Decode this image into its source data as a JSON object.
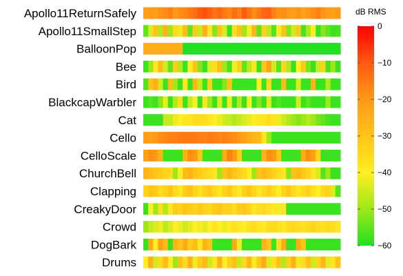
{
  "chart_data": {
    "type": "heatmap",
    "title": "",
    "colorbar": {
      "title": "dB RMS",
      "min": -60,
      "max": 0,
      "ticks": [
        0,
        -10,
        -20,
        -30,
        -40,
        -50,
        -60
      ],
      "tick_labels": [
        "0",
        "−10",
        "−20",
        "−30",
        "−40",
        "−50",
        "−60"
      ],
      "colors": [
        "#22e022",
        "#9ee81a",
        "#ffee22",
        "#ffc418",
        "#ff9a18",
        "#ff5a10",
        "#ff0000"
      ]
    },
    "rows": [
      {
        "label": "Apollo11ReturnSafely",
        "values": [
          -22,
          -20,
          -21,
          -19,
          -18,
          -16,
          -20,
          -18,
          -17,
          -15,
          -13,
          -10,
          -9,
          -11,
          -14,
          -12,
          -15,
          -17,
          -13,
          -16,
          -10,
          -14,
          -18,
          -15,
          -12,
          -11,
          -16,
          -19,
          -18,
          -20,
          -21,
          -19,
          -22,
          -20,
          -18,
          -16,
          -19,
          -21,
          -22,
          -20
        ]
      },
      {
        "label": "Apollo11SmallStep",
        "values": [
          -55,
          -44,
          -30,
          -48,
          -26,
          -50,
          -35,
          -42,
          -28,
          -55,
          -32,
          -46,
          -25,
          -38,
          -52,
          -30,
          -44,
          -58,
          -36,
          -29,
          -50,
          -41,
          -27,
          -55,
          -33,
          -47,
          -56,
          -39,
          -30,
          -52,
          -45,
          -31,
          -57,
          -49,
          -40,
          -58,
          -52,
          -55,
          -58,
          -57
        ]
      },
      {
        "label": "BalloonPop",
        "values": [
          -25,
          -25,
          -25,
          -25,
          -25,
          -25,
          -25,
          -25,
          -60,
          -60,
          -60,
          -60,
          -60,
          -60,
          -60,
          -60,
          -60,
          -60,
          -60,
          -60,
          -60,
          -60,
          -60,
          -60,
          -60,
          -60,
          -60,
          -60,
          -60,
          -60,
          -60,
          -60,
          -60,
          -60,
          -60,
          -60,
          -60,
          -60,
          -60,
          -60
        ]
      },
      {
        "label": "Bee",
        "values": [
          -58,
          -50,
          -38,
          -28,
          -45,
          -55,
          -32,
          -48,
          -58,
          -40,
          -30,
          -52,
          -58,
          -44,
          -36,
          -29,
          -50,
          -57,
          -41,
          -33,
          -55,
          -47,
          -38,
          -58,
          -30,
          -22,
          -45,
          -56,
          -35,
          -48,
          -58,
          -40,
          -31,
          -53,
          -58,
          -46,
          -34,
          -57,
          -50,
          -58
        ]
      },
      {
        "label": "Bird",
        "values": [
          -56,
          -30,
          -25,
          -45,
          -58,
          -28,
          -50,
          -58,
          -38,
          -58,
          -27,
          -46,
          -58,
          -33,
          -58,
          -58,
          -52,
          -30,
          -58,
          -58,
          -58,
          -58,
          -58,
          -40,
          -58,
          -35,
          -58,
          -58,
          -28,
          -58,
          -58,
          -44,
          -58,
          -58,
          -26,
          -58,
          -58,
          -48,
          -58,
          -58
        ]
      },
      {
        "label": "BlackcapWarbler",
        "values": [
          -58,
          -56,
          -58,
          -52,
          -42,
          -58,
          -48,
          -36,
          -58,
          -46,
          -40,
          -58,
          -38,
          -50,
          -58,
          -44,
          -58,
          -42,
          -58,
          -48,
          -58,
          -40,
          -58,
          -52,
          -58,
          -43,
          -58,
          -56,
          -58,
          -58,
          -58,
          -45,
          -58,
          -55,
          -58,
          -58,
          -58,
          -50,
          -58,
          -58
        ]
      },
      {
        "label": "Cat",
        "values": [
          -58,
          -58,
          -58,
          -58,
          -46,
          -46,
          -42,
          -40,
          -38,
          -38,
          -36,
          -36,
          -36,
          -38,
          -40,
          -42,
          -45,
          -46,
          -48,
          -46,
          -44,
          -42,
          -40,
          -38,
          -38,
          -36,
          -38,
          -42,
          -45,
          -48,
          -50,
          -52,
          -50,
          -48,
          -50,
          -53,
          -55,
          -57,
          -58,
          -58
        ]
      },
      {
        "label": "Cello",
        "values": [
          -20,
          -22,
          -20,
          -18,
          -17,
          -16,
          -16,
          -15,
          -15,
          -15,
          -15,
          -16,
          -16,
          -15,
          -16,
          -17,
          -16,
          -17,
          -18,
          -20,
          -22,
          -24,
          -26,
          -28,
          -38,
          -50,
          -58,
          -58,
          -58,
          -58,
          -58,
          -58,
          -58,
          -58,
          -58,
          -58,
          -58,
          -58,
          -58,
          -58
        ]
      },
      {
        "label": "CelloScale",
        "values": [
          -22,
          -18,
          -20,
          -26,
          -58,
          -58,
          -58,
          -58,
          -26,
          -18,
          -20,
          -30,
          -58,
          -58,
          -58,
          -58,
          -24,
          -16,
          -20,
          -32,
          -58,
          -58,
          -58,
          -58,
          -26,
          -18,
          -20,
          -30,
          -58,
          -58,
          -58,
          -58,
          -24,
          -18,
          -22,
          -34,
          -58,
          -58,
          -58,
          -58
        ]
      },
      {
        "label": "ChurchBell",
        "values": [
          -26,
          -28,
          -30,
          -32,
          -34,
          -36,
          -50,
          -40,
          -28,
          -26,
          -30,
          -32,
          -34,
          -36,
          -38,
          -50,
          -30,
          -27,
          -30,
          -33,
          -36,
          -40,
          -50,
          -30,
          -28,
          -30,
          -33,
          -36,
          -38,
          -52,
          -29,
          -28,
          -31,
          -34,
          -38,
          -44,
          -56,
          -50,
          -58,
          -58
        ]
      },
      {
        "label": "Clapping",
        "values": [
          -34,
          -30,
          -32,
          -36,
          -33,
          -30,
          -35,
          -38,
          -32,
          -30,
          -34,
          -37,
          -33,
          -31,
          -35,
          -38,
          -34,
          -31,
          -36,
          -39,
          -33,
          -30,
          -34,
          -38,
          -35,
          -32,
          -36,
          -40,
          -34,
          -31,
          -35,
          -38,
          -36,
          -33,
          -37,
          -40,
          -35,
          -33,
          -44,
          -56
        ]
      },
      {
        "label": "CreakyDoor",
        "values": [
          -58,
          -40,
          -50,
          -36,
          -48,
          -38,
          -32,
          -34,
          -30,
          -32,
          -34,
          -31,
          -33,
          -35,
          -32,
          -30,
          -34,
          -33,
          -36,
          -32,
          -31,
          -34,
          -38,
          -36,
          -35,
          -37,
          -39,
          -41,
          -38,
          -58,
          -58,
          -58,
          -58,
          -58,
          -58,
          -58,
          -58,
          -58,
          -58,
          -58
        ]
      },
      {
        "label": "Crowd",
        "values": [
          -50,
          -46,
          -44,
          -42,
          -47,
          -44,
          -40,
          -42,
          -45,
          -43,
          -40,
          -41,
          -43,
          -40,
          -38,
          -40,
          -42,
          -39,
          -37,
          -39,
          -40,
          -37,
          -36,
          -38,
          -39,
          -36,
          -35,
          -37,
          -38,
          -36,
          -35,
          -36,
          -37,
          -35,
          -34,
          -36,
          -37,
          -35,
          -36,
          -38
        ]
      },
      {
        "label": "DogBark",
        "values": [
          -58,
          -24,
          -40,
          -22,
          -28,
          -58,
          -26,
          -30,
          -24,
          -32,
          -28,
          -38,
          -26,
          -30,
          -58,
          -58,
          -58,
          -58,
          -24,
          -42,
          -58,
          -58,
          -58,
          -58,
          -26,
          -30,
          -58,
          -36,
          -24,
          -58,
          -58,
          -24,
          -30,
          -58,
          -58,
          -58,
          -58,
          -58,
          -58,
          -58
        ]
      },
      {
        "label": "Drums",
        "values": [
          -40,
          -25,
          -45,
          -35,
          -28,
          -40,
          -50,
          -30,
          -36,
          -25,
          -42,
          -32,
          -28,
          -45,
          -38,
          -26,
          -40,
          -33,
          -29,
          -46,
          -35,
          -27,
          -41,
          -31,
          -24,
          -44,
          -37,
          -30,
          -48,
          -33,
          -26,
          -42,
          -36,
          -29,
          -45,
          -34,
          -27,
          -43,
          -38,
          -30
        ]
      }
    ]
  }
}
